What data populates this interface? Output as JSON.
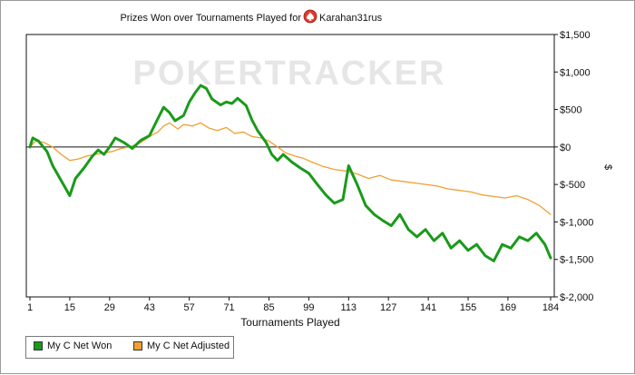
{
  "chart_data": {
    "type": "line",
    "title": "Prizes Won over Tournaments Played for",
    "player": "Karahan31rus",
    "icon": "pokerstars-spade-icon",
    "watermark": "POKERTRACKER",
    "xlabel": "Tournaments Played",
    "ylabel": "$",
    "xlim": [
      1,
      184
    ],
    "ylim": [
      -2000,
      1500
    ],
    "x_ticks": [
      "1",
      "15",
      "29",
      "43",
      "57",
      "71",
      "85",
      "99",
      "113",
      "127",
      "141",
      "155",
      "169",
      "184"
    ],
    "y_ticks": [
      "$1,500",
      "$1,000",
      "$500",
      "$0",
      "$-500",
      "$-1,000",
      "$-1,500",
      "$-2,000"
    ],
    "y_tick_values": [
      1500,
      1000,
      500,
      0,
      -500,
      -1000,
      -1500,
      -2000
    ],
    "zero_line": true,
    "grid": false,
    "legend_position": "bottom-left",
    "series": [
      {
        "name": "My C Net Won",
        "color": "#1a9a1a",
        "x": [
          1,
          2,
          4,
          7,
          9,
          12,
          15,
          17,
          20,
          23,
          25,
          27,
          29,
          31,
          34,
          37,
          40,
          43,
          46,
          48,
          50,
          52,
          55,
          57,
          59,
          61,
          63,
          65,
          68,
          70,
          72,
          74,
          77,
          79,
          81,
          84,
          86,
          88,
          90,
          93,
          96,
          99,
          102,
          105,
          108,
          111,
          113,
          116,
          119,
          122,
          125,
          128,
          131,
          134,
          137,
          140,
          143,
          146,
          149,
          152,
          155,
          158,
          161,
          164,
          167,
          170,
          173,
          176,
          179,
          182,
          184
        ],
        "y": [
          0,
          120,
          80,
          -60,
          -250,
          -450,
          -650,
          -420,
          -280,
          -120,
          -40,
          -100,
          0,
          120,
          60,
          -20,
          90,
          150,
          380,
          530,
          460,
          350,
          420,
          600,
          720,
          820,
          780,
          640,
          560,
          600,
          580,
          650,
          550,
          360,
          220,
          60,
          -100,
          -180,
          -100,
          -200,
          -280,
          -350,
          -500,
          -640,
          -750,
          -700,
          -250,
          -500,
          -780,
          -900,
          -980,
          -1050,
          -900,
          -1100,
          -1200,
          -1100,
          -1250,
          -1150,
          -1350,
          -1250,
          -1380,
          -1300,
          -1450,
          -1520,
          -1300,
          -1350,
          -1200,
          -1250,
          -1150,
          -1300,
          -1480
        ]
      },
      {
        "name": "My C Net Adjusted",
        "color": "#f0a030",
        "x": [
          1,
          3,
          6,
          9,
          12,
          15,
          18,
          21,
          24,
          27,
          30,
          33,
          36,
          40,
          43,
          46,
          48,
          50,
          53,
          55,
          58,
          61,
          64,
          67,
          70,
          73,
          76,
          79,
          82,
          85,
          88,
          91,
          94,
          97,
          100,
          104,
          108,
          112,
          116,
          120,
          124,
          128,
          132,
          136,
          140,
          144,
          148,
          152,
          156,
          160,
          164,
          168,
          172,
          176,
          180,
          184
        ],
        "y": [
          0,
          80,
          60,
          0,
          -100,
          -180,
          -160,
          -120,
          -100,
          -80,
          -60,
          -20,
          0,
          60,
          140,
          200,
          280,
          320,
          240,
          300,
          280,
          320,
          250,
          220,
          260,
          180,
          200,
          140,
          120,
          80,
          0,
          -80,
          -120,
          -150,
          -200,
          -260,
          -300,
          -320,
          -360,
          -420,
          -380,
          -440,
          -460,
          -480,
          -500,
          -520,
          -560,
          -580,
          -600,
          -640,
          -660,
          -680,
          -650,
          -700,
          -780,
          -900
        ]
      }
    ]
  }
}
